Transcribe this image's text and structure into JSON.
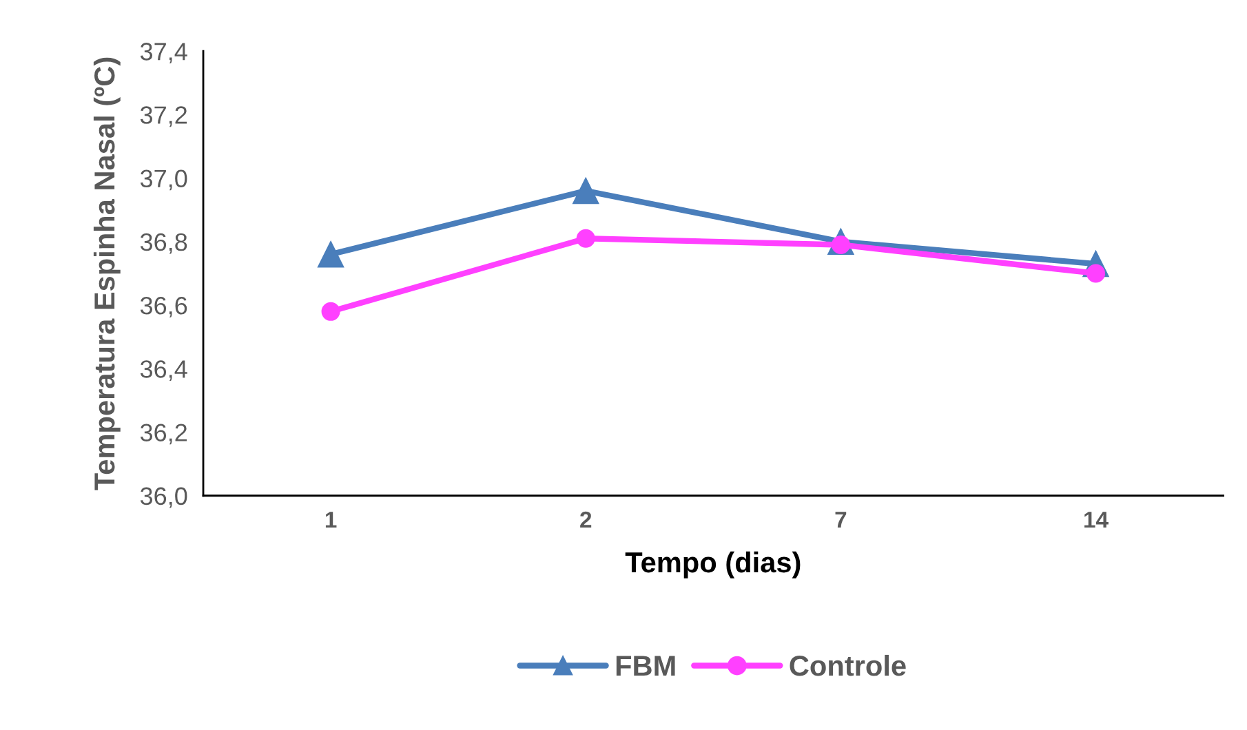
{
  "chart_data": {
    "type": "line",
    "xlabel": "Tempo (dias)",
    "ylabel": "Temperatura Espinha Nasal (ºC)",
    "categories": [
      "1",
      "2",
      "7",
      "14"
    ],
    "series": [
      {
        "name": "FBM",
        "color": "#4a7ebb",
        "marker": "triangle",
        "values": [
          36.76,
          36.96,
          36.8,
          36.73
        ]
      },
      {
        "name": "Controle",
        "color": "#ff40ff",
        "marker": "circle",
        "values": [
          36.58,
          36.81,
          36.79,
          36.7
        ]
      }
    ],
    "ylim": [
      36.0,
      37.4
    ],
    "yticks": [
      {
        "value": 36.0,
        "label": "36,0"
      },
      {
        "value": 36.2,
        "label": "36,2"
      },
      {
        "value": 36.4,
        "label": "36,4"
      },
      {
        "value": 36.6,
        "label": "36,6"
      },
      {
        "value": 36.8,
        "label": "36,8"
      },
      {
        "value": 37.0,
        "label": "37,0"
      },
      {
        "value": 37.2,
        "label": "37,2"
      },
      {
        "value": 37.4,
        "label": "37,4"
      }
    ],
    "grid": false,
    "legend": "bottom",
    "line_style": "solid"
  }
}
